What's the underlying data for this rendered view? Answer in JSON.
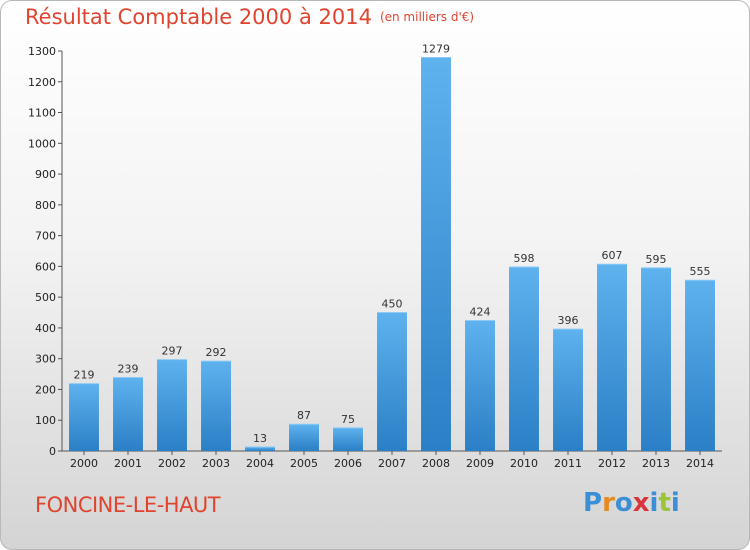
{
  "chart_data": {
    "type": "bar",
    "title": "Résultat Comptable 2000 à 2014",
    "subtitle": "(en milliers d'€)",
    "categories": [
      "2000",
      "2001",
      "2002",
      "2003",
      "2004",
      "2005",
      "2006",
      "2007",
      "2008",
      "2009",
      "2010",
      "2011",
      "2012",
      "2013",
      "2014"
    ],
    "values": [
      219,
      239,
      297,
      292,
      13,
      87,
      75,
      450,
      1279,
      424,
      598,
      396,
      607,
      595,
      555
    ],
    "ylim": [
      0,
      1300
    ],
    "yticks": [
      0,
      100,
      200,
      300,
      400,
      500,
      600,
      700,
      800,
      900,
      1000,
      1100,
      1200,
      1300
    ],
    "grid": false,
    "bar_color": "#3d95d8"
  },
  "footer": {
    "commune": "FONCINE-LE-HAUT",
    "brand": [
      "P",
      "r",
      "o",
      "x",
      "i",
      "t",
      "i"
    ],
    "brand_colors": [
      "#3a8fd6",
      "#e58a1f",
      "#3a8fd6",
      "#d9343c",
      "#3a8fd6",
      "#9bc43a",
      "#3a8fd6"
    ]
  },
  "colors": {
    "title": "#e0442f"
  }
}
